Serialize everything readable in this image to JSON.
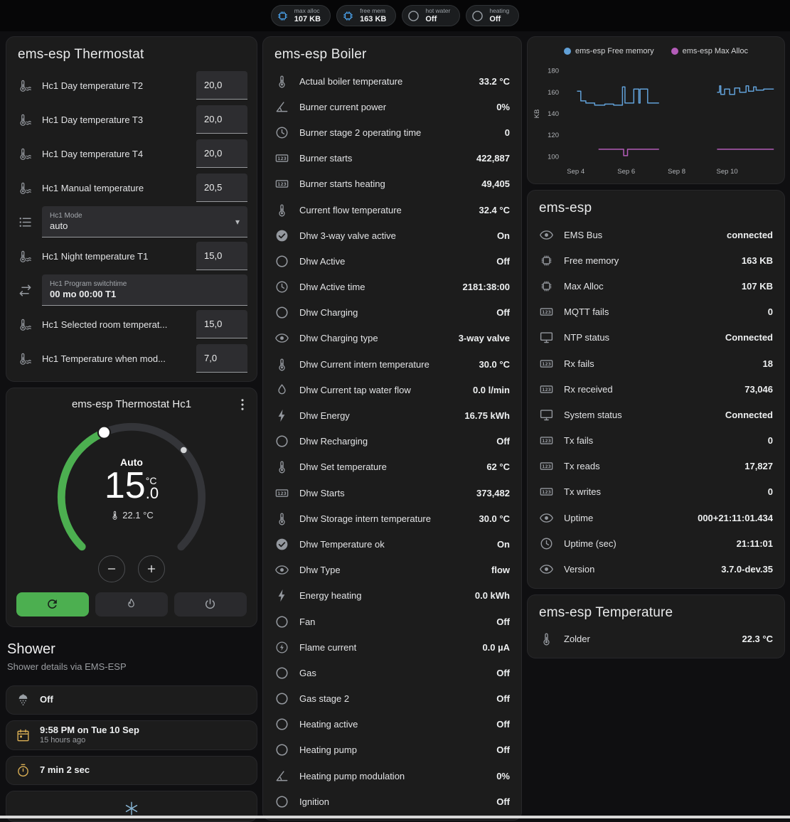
{
  "header": {
    "badges": [
      {
        "icon": "chip",
        "icon_color": "#4aa0e8",
        "label": "max alloc",
        "value": "107 KB"
      },
      {
        "icon": "chip",
        "icon_color": "#4aa0e8",
        "label": "free mem",
        "value": "163 KB"
      },
      {
        "icon": "circle-o",
        "icon_color": "#9aa0a6",
        "label": "hot water",
        "value": "Off"
      },
      {
        "icon": "circle-o",
        "icon_color": "#9aa0a6",
        "label": "heating",
        "value": "Off"
      }
    ]
  },
  "thermostat_card": {
    "title": "ems-esp Thermostat",
    "rows": [
      {
        "type": "number",
        "icon": "thermo-water",
        "label": "Hc1 Day temperature T2",
        "value": "20,0"
      },
      {
        "type": "number",
        "icon": "thermo-water",
        "label": "Hc1 Day temperature T3",
        "value": "20,0"
      },
      {
        "type": "number",
        "icon": "thermo-water",
        "label": "Hc1 Day temperature T4",
        "value": "20,0"
      },
      {
        "type": "number",
        "icon": "thermo-water",
        "label": "Hc1 Manual temperature",
        "value": "20,5"
      },
      {
        "type": "select",
        "icon": "list",
        "label": "Hc1 Mode",
        "value": "auto"
      },
      {
        "type": "number",
        "icon": "thermo-water",
        "label": "Hc1 Night temperature T1",
        "value": "15,0"
      },
      {
        "type": "text",
        "icon": "swap",
        "label": "Hc1 Program switchtime",
        "value": "00 mo 00:00 T1"
      },
      {
        "type": "number",
        "icon": "thermo-water",
        "label": "Hc1 Selected room temperat...",
        "value": "15,0"
      },
      {
        "type": "number",
        "icon": "thermo-water",
        "label": "Hc1 Temperature when mod...",
        "value": "7,0"
      }
    ]
  },
  "dial_card": {
    "title": "ems-esp Thermostat Hc1",
    "mode_label": "Auto",
    "temp_int": "15",
    "temp_dec": ".0",
    "temp_unit": "°C",
    "current_temp": "22.1 °C",
    "accent_color": "#4caf50",
    "modes": [
      {
        "icon": "autorenew",
        "selected": true
      },
      {
        "icon": "flame"
      },
      {
        "icon": "power"
      }
    ]
  },
  "shower": {
    "title": "Shower",
    "subtitle": "Shower details via EMS-ESP",
    "cards": [
      {
        "icon": "shower",
        "icon_color": "#9aa0a6",
        "primary": "Off",
        "secondary": ""
      },
      {
        "icon": "calendar",
        "icon_color": "#d9ae54",
        "primary": "9:58 PM on Tue 10 Sep",
        "secondary": "15 hours ago"
      },
      {
        "icon": "timer",
        "icon_color": "#d9ae54",
        "primary": "7 min 2 sec",
        "secondary": ""
      }
    ],
    "partial_icon": "snowflake"
  },
  "boiler_card": {
    "title": "ems-esp Boiler",
    "rows": [
      {
        "icon": "thermometer",
        "label": "Actual boiler temperature",
        "value": "33.2 °C"
      },
      {
        "icon": "angle",
        "label": "Burner current power",
        "value": "0%"
      },
      {
        "icon": "clock",
        "label": "Burner stage 2 operating time",
        "value": "0"
      },
      {
        "icon": "counter",
        "label": "Burner starts",
        "value": "422,887"
      },
      {
        "icon": "counter",
        "label": "Burner starts heating",
        "value": "49,405"
      },
      {
        "icon": "thermometer",
        "label": "Current flow temperature",
        "value": "32.4 °C"
      },
      {
        "icon": "check-circle",
        "label": "Dhw 3-way valve active",
        "value": "On"
      },
      {
        "icon": "circle-o",
        "label": "Dhw Active",
        "value": "Off"
      },
      {
        "icon": "clock",
        "label": "Dhw Active time",
        "value": "2181:38:00"
      },
      {
        "icon": "circle-o",
        "label": "Dhw Charging",
        "value": "Off"
      },
      {
        "icon": "eye",
        "label": "Dhw Charging type",
        "value": "3-way valve"
      },
      {
        "icon": "thermometer",
        "label": "Dhw Current intern temperature",
        "value": "30.0 °C"
      },
      {
        "icon": "water-flow",
        "label": "Dhw Current tap water flow",
        "value": "0.0 l/min"
      },
      {
        "icon": "flash",
        "label": "Dhw Energy",
        "value": "16.75 kWh"
      },
      {
        "icon": "circle-o",
        "label": "Dhw Recharging",
        "value": "Off"
      },
      {
        "icon": "thermometer",
        "label": "Dhw Set temperature",
        "value": "62 °C"
      },
      {
        "icon": "counter",
        "label": "Dhw Starts",
        "value": "373,482"
      },
      {
        "icon": "thermometer",
        "label": "Dhw Storage intern temperature",
        "value": "30.0 °C"
      },
      {
        "icon": "check-circle",
        "label": "Dhw Temperature ok",
        "value": "On"
      },
      {
        "icon": "eye",
        "label": "Dhw Type",
        "value": "flow"
      },
      {
        "icon": "flash",
        "label": "Energy heating",
        "value": "0.0 kWh"
      },
      {
        "icon": "circle-o",
        "label": "Fan",
        "value": "Off"
      },
      {
        "icon": "current",
        "label": "Flame current",
        "value": "0.0 µA"
      },
      {
        "icon": "circle-o",
        "label": "Gas",
        "value": "Off"
      },
      {
        "icon": "circle-o",
        "label": "Gas stage 2",
        "value": "Off"
      },
      {
        "icon": "circle-o",
        "label": "Heating active",
        "value": "Off"
      },
      {
        "icon": "circle-o",
        "label": "Heating pump",
        "value": "Off"
      },
      {
        "icon": "angle",
        "label": "Heating pump modulation",
        "value": "0%"
      },
      {
        "icon": "circle-o",
        "label": "Ignition",
        "value": "Off"
      }
    ]
  },
  "ems_card": {
    "title": "ems-esp",
    "rows": [
      {
        "icon": "eye",
        "label": "EMS Bus",
        "value": "connected"
      },
      {
        "icon": "chip",
        "label": "Free memory",
        "value": "163 KB"
      },
      {
        "icon": "chip",
        "label": "Max Alloc",
        "value": "107 KB"
      },
      {
        "icon": "counter",
        "label": "MQTT fails",
        "value": "0"
      },
      {
        "icon": "monitor",
        "label": "NTP status",
        "value": "Connected"
      },
      {
        "icon": "counter",
        "label": "Rx fails",
        "value": "18"
      },
      {
        "icon": "counter",
        "label": "Rx received",
        "value": "73,046"
      },
      {
        "icon": "monitor",
        "label": "System status",
        "value": "Connected"
      },
      {
        "icon": "counter",
        "label": "Tx fails",
        "value": "0"
      },
      {
        "icon": "counter",
        "label": "Tx reads",
        "value": "17,827"
      },
      {
        "icon": "counter",
        "label": "Tx writes",
        "value": "0"
      },
      {
        "icon": "eye",
        "label": "Uptime",
        "value": "000+21:11:01.434"
      },
      {
        "icon": "clock",
        "label": "Uptime (sec)",
        "value": "21:11:01"
      },
      {
        "icon": "eye",
        "label": "Version",
        "value": "3.7.0-dev.35"
      }
    ]
  },
  "temp_card": {
    "title": "ems-esp Temperature",
    "rows": [
      {
        "icon": "thermometer",
        "label": "Zolder",
        "value": "22.3 °C"
      }
    ]
  },
  "chart_data": {
    "type": "line",
    "title": "",
    "y_label": "KB",
    "x_range": [
      3.5,
      11.9
    ],
    "y_range": [
      95,
      185
    ],
    "y_ticks": [
      100,
      120,
      140,
      160,
      180
    ],
    "x_ticks": [
      {
        "label": "Sep 4",
        "x": 4
      },
      {
        "label": "Sep 6",
        "x": 6
      },
      {
        "label": "Sep 8",
        "x": 8
      },
      {
        "label": "Sep 10",
        "x": 10
      }
    ],
    "legend_position": "top",
    "grid": false,
    "series": [
      {
        "name": "ems-esp Free memory",
        "color": "#61a0d7",
        "points": [
          [
            4.05,
            161
          ],
          [
            4.2,
            161
          ],
          [
            4.2,
            152
          ],
          [
            4.4,
            152
          ],
          [
            4.4,
            150
          ],
          [
            4.75,
            150
          ],
          [
            4.75,
            148
          ],
          [
            5.15,
            148
          ],
          [
            5.15,
            149
          ],
          [
            5.5,
            149
          ],
          [
            5.5,
            148
          ],
          [
            5.85,
            148
          ],
          [
            5.85,
            165
          ],
          [
            5.95,
            165
          ],
          [
            5.95,
            150
          ],
          [
            6.3,
            150
          ],
          [
            6.3,
            163
          ],
          [
            6.5,
            163
          ],
          [
            6.5,
            150
          ],
          [
            6.55,
            150
          ],
          [
            6.55,
            163
          ],
          [
            6.85,
            163
          ],
          [
            6.85,
            150
          ],
          [
            7.3,
            150
          ],
          null,
          [
            9.6,
            160
          ],
          [
            9.7,
            160
          ],
          [
            9.7,
            166
          ],
          [
            9.75,
            166
          ],
          [
            9.75,
            158
          ],
          [
            9.9,
            158
          ],
          [
            9.9,
            163
          ],
          [
            10.1,
            163
          ],
          [
            10.1,
            158
          ],
          [
            10.3,
            158
          ],
          [
            10.3,
            164
          ],
          [
            10.5,
            164
          ],
          [
            10.5,
            160
          ],
          [
            10.75,
            160
          ],
          [
            10.75,
            166
          ],
          [
            10.85,
            166
          ],
          [
            10.85,
            161
          ],
          [
            11.05,
            161
          ],
          [
            11.05,
            165
          ],
          [
            11.15,
            165
          ],
          [
            11.15,
            162
          ],
          [
            11.45,
            162
          ],
          [
            11.45,
            163
          ],
          [
            11.85,
            163
          ]
        ]
      },
      {
        "name": "ems-esp Max Alloc",
        "color": "#b35cb8",
        "points": [
          [
            4.9,
            107
          ],
          [
            5.9,
            107
          ],
          [
            5.9,
            101
          ],
          [
            6.05,
            101
          ],
          [
            6.05,
            107
          ],
          [
            7.3,
            107
          ],
          null,
          [
            9.6,
            107
          ],
          [
            11.85,
            107
          ]
        ]
      }
    ]
  }
}
